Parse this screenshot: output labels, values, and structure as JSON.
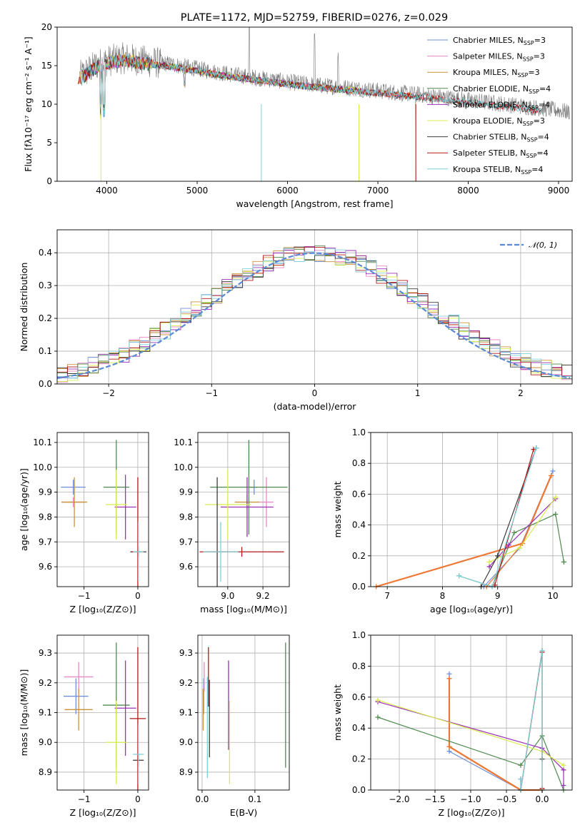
{
  "figure_title": "PLATE=1172, MJD=52759, FIBERID=0276, z=0.029",
  "colors": {
    "Chabrier MILES": "#6f8fd8",
    "Salpeter MILES": "#e889c4",
    "Kroupa MILES": "#c9933a",
    "Chabrier ELODIE": "#4f8a4f",
    "Salpeter ELODIE": "#9b30b8",
    "Kroupa ELODIE": "#d8ec4e",
    "Chabrier STELIB": "#3c3c3c",
    "Salpeter STELIB": "#b21818",
    "Kroupa STELIB": "#80d0da",
    "data": "#7a7a7a",
    "gaussian": "#5b8ad4",
    "orange": "#ee7733"
  },
  "chart_data": [
    {
      "id": "spectrum",
      "type": "line",
      "title": "PLATE=1172, MJD=52759, FIBERID=0276, z=0.029",
      "xlabel": "wavelength [Angstrom, rest frame]",
      "ylabel": "Flux [fλ10⁻¹⁷ erg cm⁻² s⁻¹ A⁻¹]",
      "xlim": [
        3450,
        9150
      ],
      "ylim": [
        0,
        20
      ],
      "xticks": [
        "4000",
        "5000",
        "6000",
        "7000",
        "8000",
        "9000"
      ],
      "yticks": [
        "0",
        "5",
        "10",
        "15",
        "20"
      ],
      "grid": false,
      "legend": "top-right",
      "continuum_x": [
        3700,
        3900,
        4000,
        4200,
        4400,
        4700,
        5000,
        5300,
        5600,
        6000,
        6400,
        6800,
        7200,
        7500,
        7800,
        8000,
        8400,
        8700,
        9000,
        9100
      ],
      "continuum_y": [
        13.6,
        15.2,
        15.6,
        16.0,
        15.6,
        15.2,
        14.6,
        14.0,
        13.5,
        12.9,
        12.4,
        12.0,
        11.5,
        11.2,
        10.8,
        10.5,
        10.0,
        9.6,
        9.2,
        9.0
      ],
      "series": [
        {
          "name": "Chabrier MILES, N_SSP=3",
          "legend_main": "Chabrier MILES, N",
          "legend_sub": "SSP",
          "legend_tail": "=3",
          "x_end": 7420
        },
        {
          "name": "Salpeter MILES, N_SSP=3",
          "legend_main": "Salpeter MILES, N",
          "legend_sub": "SSP",
          "legend_tail": "=3",
          "x_end": 7420
        },
        {
          "name": "Kroupa MILES, N_SSP=3",
          "legend_main": "Kroupa MILES, N",
          "legend_sub": "SSP",
          "legend_tail": "=3",
          "x_end": 7420
        },
        {
          "name": "Chabrier ELODIE, N_SSP=4",
          "legend_main": "Chabrier ELODIE, N",
          "legend_sub": "SSP",
          "legend_tail": "=4",
          "x_end": 6800
        },
        {
          "name": "Salpeter ELODIE, N_SSP=4",
          "legend_main": "Salpeter ELODIE, N",
          "legend_sub": "SSP",
          "legend_tail": "=4",
          "x_end": 6800
        },
        {
          "name": "Kroupa ELODIE, N_SSP=3",
          "legend_main": "Kroupa ELODIE, N",
          "legend_sub": "SSP",
          "legend_tail": "=3",
          "x_end": 6800
        },
        {
          "name": "Chabrier STELIB, N_SSP=4",
          "legend_main": "Chabrier STELIB, N",
          "legend_sub": "SSP",
          "legend_tail": "=4",
          "x_end": 8800
        },
        {
          "name": "Salpeter STELIB, N_SSP=4",
          "legend_main": "Salpeter STELIB, N",
          "legend_sub": "SSP",
          "legend_tail": "=4",
          "x_end": 8800
        },
        {
          "name": "Kroupa STELIB, N_SSP=4",
          "legend_main": "Kroupa STELIB, N",
          "legend_sub": "SSP",
          "legend_tail": "=4",
          "x_end": 8800
        }
      ]
    },
    {
      "id": "residuals",
      "type": "line",
      "xlabel": "(data-model)/error",
      "ylabel": "Normed distribution",
      "xlim": [
        -2.5,
        2.5
      ],
      "ylim": [
        0,
        0.47
      ],
      "xticks": [
        "−2",
        "−1",
        "0",
        "1",
        "2"
      ],
      "yticks": [
        "0.0",
        "0.1",
        "0.2",
        "0.3",
        "0.4"
      ],
      "grid": true,
      "legend": "top-right",
      "legend_label": "𝒩(0, 1)",
      "histogram_bin_width": 0.1,
      "gaussian": {
        "mean": 0,
        "sigma": 1
      }
    },
    {
      "id": "age_vs_Z",
      "type": "errorbar",
      "xlabel": "Z [log₁₀(Z/Z⊙)]",
      "ylabel": "age  [log₁₀(age/yr)]",
      "xlim": [
        -1.5,
        0.2
      ],
      "ylim": [
        9.52,
        10.14
      ],
      "xticks": [
        "−1",
        "0"
      ],
      "yticks": [
        "9.6",
        "9.7",
        "9.8",
        "9.9",
        "10.0",
        "10.1"
      ],
      "grid": true,
      "points": [
        {
          "s": "Chabrier MILES",
          "x": -1.2,
          "y": 9.92,
          "xerr": 0.23,
          "yerr": 0.03
        },
        {
          "s": "Salpeter MILES",
          "x": -1.2,
          "y": 9.86,
          "xerr": 0.22,
          "yerr": 0.02
        },
        {
          "s": "Kroupa MILES",
          "x": -1.18,
          "y": 9.86,
          "xerr": 0.24,
          "yerr": 0.1
        },
        {
          "s": "Chabrier ELODIE",
          "x": -0.4,
          "y": 9.92,
          "xerr": 0.24,
          "yerr": 0.19
        },
        {
          "s": "Salpeter ELODIE",
          "x": -0.23,
          "y": 9.84,
          "xerr": 0.2,
          "yerr": 0.13
        },
        {
          "s": "Kroupa ELODIE",
          "x": -0.4,
          "y": 9.85,
          "xerr": 0.2,
          "yerr": 0.14
        },
        {
          "s": "Chabrier STELIB",
          "x": 0.01,
          "y": 9.66,
          "xerr": 0.15,
          "yerr": 0.02
        },
        {
          "s": "Salpeter STELIB",
          "x": 0.0,
          "y": 9.66,
          "xerr": 0.12,
          "yerr": 0.3
        },
        {
          "s": "Kroupa STELIB",
          "x": 0.01,
          "y": 9.66,
          "xerr": 0.1,
          "yerr": 0.12
        }
      ]
    },
    {
      "id": "age_vs_mass",
      "type": "errorbar",
      "xlabel": "mass [log₁₀(M/M⊙)]",
      "ylabel": "",
      "xlim": [
        8.83,
        9.35
      ],
      "ylim": [
        9.52,
        10.14
      ],
      "xticks": [
        "9.0",
        "9.2"
      ],
      "yticks": [
        "9.6",
        "9.7",
        "9.8",
        "9.9",
        "10.0",
        "10.1"
      ],
      "grid": true,
      "points": [
        {
          "s": "Chabrier MILES",
          "x": 9.15,
          "y": 9.92,
          "xerr": 0.02,
          "yerr": 0.03
        },
        {
          "s": "Salpeter MILES",
          "x": 9.22,
          "y": 9.86,
          "xerr": 0.04,
          "yerr": 0.1
        },
        {
          "s": "Kroupa MILES",
          "x": 9.11,
          "y": 9.86,
          "xerr": 0.07,
          "yerr": 0.03
        },
        {
          "s": "Chabrier ELODIE",
          "x": 9.12,
          "y": 9.92,
          "xerr": 0.22,
          "yerr": 0.19
        },
        {
          "s": "Salpeter ELODIE",
          "x": 9.11,
          "y": 9.84,
          "xerr": 0.15,
          "yerr": 0.12
        },
        {
          "s": "Kroupa ELODIE",
          "x": 9.0,
          "y": 9.85,
          "xerr": 0.13,
          "yerr": 0.14
        },
        {
          "s": "Chabrier STELIB",
          "x": 8.94,
          "y": 9.66,
          "xerr": 0.07,
          "yerr": 0.3
        },
        {
          "s": "Salpeter STELIB",
          "x": 9.08,
          "y": 9.66,
          "xerr": 0.24,
          "yerr": 0.02
        },
        {
          "s": "Kroupa STELIB",
          "x": 8.96,
          "y": 9.66,
          "xerr": 0.1,
          "yerr": 0.12
        }
      ]
    },
    {
      "id": "mass_weight_vs_age",
      "type": "line",
      "xlabel": "age  [log₁₀(age/yr)]",
      "ylabel": "mass weight",
      "xlim": [
        6.7,
        10.35
      ],
      "ylim": [
        0,
        1.0
      ],
      "xticks": [
        "7",
        "8",
        "9",
        "10"
      ],
      "yticks": [
        "0.0",
        "0.2",
        "0.4",
        "0.6",
        "0.8",
        "1.0"
      ],
      "grid": true,
      "series": [
        {
          "s": "Chabrier MILES",
          "x": [
            8.75,
            9.4,
            10.0
          ],
          "y": [
            0.0,
            0.25,
            0.75
          ]
        },
        {
          "s": "Salpeter MILES",
          "x": [
            8.8,
            9.45,
            9.97
          ],
          "y": [
            0.0,
            0.28,
            0.72
          ]
        },
        {
          "s": "Kroupa MILES",
          "x": [
            6.8,
            9.45,
            9.97
          ],
          "y": [
            0.0,
            0.28,
            0.72
          ]
        },
        {
          "s": "Chabrier ELODIE",
          "x": [
            8.3,
            8.9,
            9.3,
            10.05,
            10.2
          ],
          "y": [
            0.07,
            0.0,
            0.35,
            0.47,
            0.16
          ]
        },
        {
          "s": "Salpeter ELODIE",
          "x": [
            8.85,
            9.2,
            10.05
          ],
          "y": [
            0.13,
            0.27,
            0.57
          ]
        },
        {
          "s": "Kroupa ELODIE",
          "x": [
            8.85,
            9.4,
            10.05
          ],
          "y": [
            0.16,
            0.25,
            0.58
          ]
        },
        {
          "s": "Chabrier STELIB",
          "x": [
            8.7,
            9.0,
            9.7
          ],
          "y": [
            0.0,
            0.2,
            0.9
          ]
        },
        {
          "s": "Salpeter STELIB",
          "x": [
            8.95,
            9.65
          ],
          "y": [
            0.01,
            0.89
          ]
        },
        {
          "s": "Kroupa STELIB",
          "x": [
            8.3,
            8.9,
            9.7
          ],
          "y": [
            0.07,
            0.0,
            0.9
          ]
        }
      ]
    },
    {
      "id": "mass_vs_Z",
      "type": "errorbar",
      "xlabel": "Z [log₁₀(Z/Z⊙)]",
      "ylabel": "mass [log₁₀(M/M⊙)]",
      "xlim": [
        -1.5,
        0.2
      ],
      "ylim": [
        8.84,
        9.36
      ],
      "xticks": [
        "−1",
        "0"
      ],
      "yticks": [
        "8.9",
        "9.0",
        "9.1",
        "9.2",
        "9.3"
      ],
      "grid": true,
      "points": [
        {
          "s": "Chabrier MILES",
          "x": -1.15,
          "y": 9.155,
          "xerr": 0.23,
          "yerr": 0.06
        },
        {
          "s": "Salpeter MILES",
          "x": -1.1,
          "y": 9.22,
          "xerr": 0.27,
          "yerr": 0.05
        },
        {
          "s": "Kroupa MILES",
          "x": -1.1,
          "y": 9.11,
          "xerr": 0.26,
          "yerr": 0.07
        },
        {
          "s": "Chabrier ELODIE",
          "x": -0.4,
          "y": 9.125,
          "xerr": 0.25,
          "yerr": 0.21
        },
        {
          "s": "Salpeter ELODIE",
          "x": -0.23,
          "y": 9.115,
          "xerr": 0.2,
          "yerr": 0.16
        },
        {
          "s": "Kroupa ELODIE",
          "x": -0.4,
          "y": 9.0,
          "xerr": 0.2,
          "yerr": 0.14
        },
        {
          "s": "Chabrier STELIB",
          "x": 0.01,
          "y": 8.94,
          "xerr": 0.1,
          "yerr": 0.02
        },
        {
          "s": "Salpeter STELIB",
          "x": 0.0,
          "y": 9.08,
          "xerr": 0.15,
          "yerr": 0.24
        },
        {
          "s": "Kroupa STELIB",
          "x": 0.01,
          "y": 8.96,
          "xerr": 0.1,
          "yerr": 0.1
        }
      ]
    },
    {
      "id": "mass_vs_EBV",
      "type": "errorbar",
      "xlabel": "E(B-V)",
      "ylabel": "",
      "xlim": [
        -0.008,
        0.165
      ],
      "ylim": [
        8.84,
        9.36
      ],
      "xticks": [
        "0.0",
        "0.1"
      ],
      "yticks": [
        "8.9",
        "9.0",
        "9.1",
        "9.2",
        "9.3"
      ],
      "grid": true,
      "points": [
        {
          "s": "Chabrier MILES",
          "x": 0.003,
          "y": 9.155,
          "yerr": 0.06
        },
        {
          "s": "Salpeter MILES",
          "x": 0.004,
          "y": 9.22,
          "yerr": 0.05
        },
        {
          "s": "Kroupa MILES",
          "x": 0.002,
          "y": 9.11,
          "yerr": 0.07
        },
        {
          "s": "Chabrier ELODIE",
          "x": 0.158,
          "y": 9.125,
          "yerr": 0.21
        },
        {
          "s": "Salpeter ELODIE",
          "x": 0.05,
          "y": 9.125,
          "yerr": 0.15
        },
        {
          "s": "Kroupa ELODIE",
          "x": 0.052,
          "y": 9.0,
          "yerr": 0.14
        },
        {
          "s": "Chabrier STELIB",
          "x": 0.014,
          "y": 9.08,
          "yerr": 0.13
        },
        {
          "s": "Salpeter STELIB",
          "x": 0.012,
          "y": 9.22,
          "yerr": 0.1
        },
        {
          "s": "Kroupa STELIB",
          "x": 0.01,
          "y": 9.05,
          "yerr": 0.17
        }
      ]
    },
    {
      "id": "mass_weight_vs_Z",
      "type": "line",
      "xlabel": "Z [log₁₀(Z/Z⊙)]",
      "ylabel": "mass weight",
      "xlim": [
        -2.4,
        0.42
      ],
      "ylim": [
        0,
        1.0
      ],
      "xticks": [
        "−2.0",
        "−1.5",
        "−1.0",
        "−0.5",
        "0.0"
      ],
      "yticks": [
        "0.0",
        "0.2",
        "0.4",
        "0.6",
        "0.8",
        "1.0"
      ],
      "grid": true,
      "series": [
        {
          "s": "Chabrier MILES",
          "x": [
            -1.3,
            -1.3,
            -0.3,
            0.0
          ],
          "y": [
            0.75,
            0.25,
            0.0,
            0.0
          ]
        },
        {
          "s": "Salpeter MILES",
          "x": [
            -1.3,
            -1.3,
            -0.3,
            0.0
          ],
          "y": [
            0.72,
            0.28,
            0.0,
            0.0
          ]
        },
        {
          "s": "Kroupa MILES",
          "x": [
            -1.3,
            -1.3,
            -0.3,
            0.0
          ],
          "y": [
            0.72,
            0.28,
            0.0,
            0.0
          ]
        },
        {
          "s": "Chabrier ELODIE",
          "x": [
            -2.3,
            -0.3,
            0.0,
            0.3
          ],
          "y": [
            0.47,
            0.16,
            0.35,
            0.0
          ]
        },
        {
          "s": "Salpeter ELODIE",
          "x": [
            -2.3,
            0.0,
            0.3,
            0.3
          ],
          "y": [
            0.57,
            0.27,
            0.13,
            0.03
          ]
        },
        {
          "s": "Kroupa ELODIE",
          "x": [
            -2.3,
            0.0,
            0.3
          ],
          "y": [
            0.58,
            0.25,
            0.16
          ]
        },
        {
          "s": "Chabrier STELIB",
          "x": [
            -0.3,
            -0.3,
            0.0,
            0.0
          ],
          "y": [
            0.07,
            0.0,
            0.9,
            0.2
          ]
        },
        {
          "s": "Salpeter STELIB",
          "x": [
            -0.3,
            0.0,
            0.0
          ],
          "y": [
            0.0,
            0.89,
            0.01
          ]
        },
        {
          "s": "Kroupa STELIB",
          "x": [
            -0.3,
            -0.3,
            0.0,
            0.0
          ],
          "y": [
            0.07,
            0.0,
            0.9,
            0.0
          ]
        }
      ]
    }
  ]
}
